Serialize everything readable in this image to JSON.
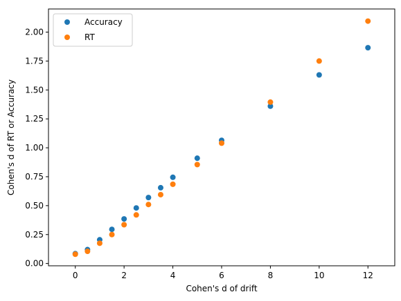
{
  "chart_data": {
    "type": "scatter",
    "xlabel": "Cohen's d of drift",
    "ylabel": "Cohen's d of RT or Accuracy",
    "xlim": [
      -1.1,
      13.1
    ],
    "ylim": [
      -0.02,
      2.2
    ],
    "xticks": [
      0,
      2,
      4,
      6,
      8,
      10,
      12
    ],
    "yticks": [
      0.0,
      0.25,
      0.5,
      0.75,
      1.0,
      1.25,
      1.5,
      1.75,
      2.0
    ],
    "xtick_labels": [
      "0",
      "2",
      "4",
      "6",
      "8",
      "10",
      "12"
    ],
    "ytick_labels": [
      "0.00",
      "0.25",
      "0.50",
      "0.75",
      "1.00",
      "1.25",
      "1.50",
      "1.75",
      "2.00"
    ],
    "grid": false,
    "legend": "upper-left",
    "series": [
      {
        "name": "Accuracy",
        "color": "#1f77b4",
        "x": [
          0,
          0.5,
          1,
          1.5,
          2,
          2.5,
          3,
          3.5,
          4,
          5,
          6,
          8,
          10,
          12
        ],
        "y": [
          0.085,
          0.12,
          0.205,
          0.295,
          0.385,
          0.48,
          0.57,
          0.655,
          0.745,
          0.91,
          1.065,
          1.36,
          1.63,
          1.865
        ]
      },
      {
        "name": "RT",
        "color": "#ff7f0e",
        "x": [
          0,
          0.5,
          1,
          1.5,
          2,
          2.5,
          3,
          3.5,
          4,
          5,
          6,
          8,
          10,
          12
        ],
        "y": [
          0.08,
          0.105,
          0.175,
          0.25,
          0.335,
          0.42,
          0.51,
          0.595,
          0.685,
          0.855,
          1.04,
          1.395,
          1.75,
          2.095
        ]
      }
    ]
  }
}
